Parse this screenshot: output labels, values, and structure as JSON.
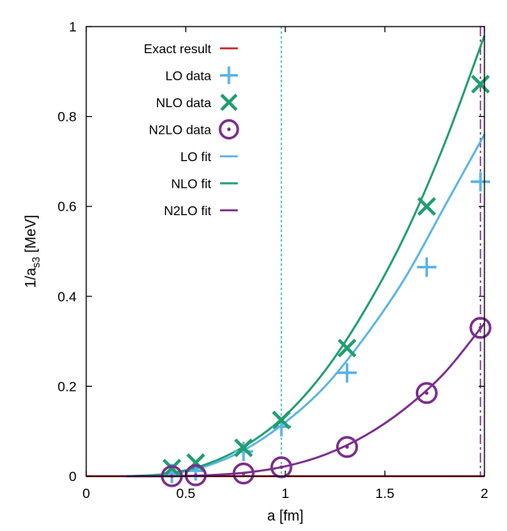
{
  "chart_data": {
    "type": "line",
    "title": "",
    "xlabel": "a  [fm]",
    "ylabel_main": "1/a",
    "ylabel_sub": "s3",
    "ylabel_unit": " [MeV]",
    "xlim": [
      0,
      2
    ],
    "ylim": [
      0,
      1
    ],
    "xticks": [
      0,
      0.5,
      1,
      1.5,
      2
    ],
    "xtick_labels": [
      "0",
      "0.5",
      "1",
      "1.5",
      "2"
    ],
    "yticks": [
      0,
      0.2,
      0.4,
      0.6,
      0.8,
      1
    ],
    "ytick_labels": [
      "0",
      "0.2",
      "0.4",
      "0.6",
      "0.8",
      "1"
    ],
    "grid": false,
    "legend_position": "top-left",
    "vertical_lines": [
      {
        "x": 0.98,
        "color": "#3fb9c4",
        "style": "dotted"
      },
      {
        "x": 1.98,
        "color": "#7b2d8e",
        "style": "dashdot"
      }
    ],
    "series": [
      {
        "name": "Exact result",
        "kind": "line",
        "color": "#d62728",
        "x": [
          0,
          2
        ],
        "y": [
          0,
          0
        ]
      },
      {
        "name": "LO data",
        "kind": "marker",
        "marker": "plus",
        "color": "#5ab4e5",
        "x": [
          0.43,
          0.55,
          0.79,
          0.98,
          1.31,
          1.71,
          1.98
        ],
        "y": [
          0.006,
          0.012,
          0.055,
          0.11,
          0.23,
          0.465,
          0.655
        ]
      },
      {
        "name": "NLO data",
        "kind": "marker",
        "marker": "cross",
        "color": "#1f9e6e",
        "x": [
          0.43,
          0.55,
          0.79,
          0.98,
          1.31,
          1.71,
          1.98
        ],
        "y": [
          0.018,
          0.03,
          0.063,
          0.125,
          0.285,
          0.6,
          0.872
        ]
      },
      {
        "name": "N2LO data",
        "kind": "marker",
        "marker": "circle-dot",
        "color": "#7b2d8e",
        "x": [
          0.43,
          0.55,
          0.79,
          0.98,
          1.31,
          1.71,
          1.98
        ],
        "y": [
          0.0,
          0.002,
          0.006,
          0.02,
          0.065,
          0.185,
          0.33
        ]
      },
      {
        "name": "LO fit",
        "kind": "curve",
        "color": "#5ab4e5",
        "x": [
          0.2,
          0.4,
          0.6,
          0.8,
          1.0,
          1.2,
          1.4,
          1.6,
          1.8,
          2.0
        ],
        "y": [
          0.0,
          0.004,
          0.022,
          0.06,
          0.12,
          0.2,
          0.31,
          0.44,
          0.6,
          0.76
        ]
      },
      {
        "name": "NLO fit",
        "kind": "curve",
        "color": "#1f9e6e",
        "x": [
          0.2,
          0.4,
          0.6,
          0.8,
          1.0,
          1.2,
          1.4,
          1.6,
          1.8,
          2.0
        ],
        "y": [
          0.0,
          0.005,
          0.026,
          0.068,
          0.135,
          0.235,
          0.37,
          0.535,
          0.74,
          0.98
        ]
      },
      {
        "name": "N2LO fit",
        "kind": "curve",
        "color": "#7b2d8e",
        "x": [
          0.2,
          0.4,
          0.6,
          0.8,
          1.0,
          1.2,
          1.4,
          1.6,
          1.8,
          2.0
        ],
        "y": [
          0.0,
          0.0,
          0.002,
          0.008,
          0.022,
          0.048,
          0.09,
          0.15,
          0.23,
          0.34
        ]
      }
    ]
  }
}
